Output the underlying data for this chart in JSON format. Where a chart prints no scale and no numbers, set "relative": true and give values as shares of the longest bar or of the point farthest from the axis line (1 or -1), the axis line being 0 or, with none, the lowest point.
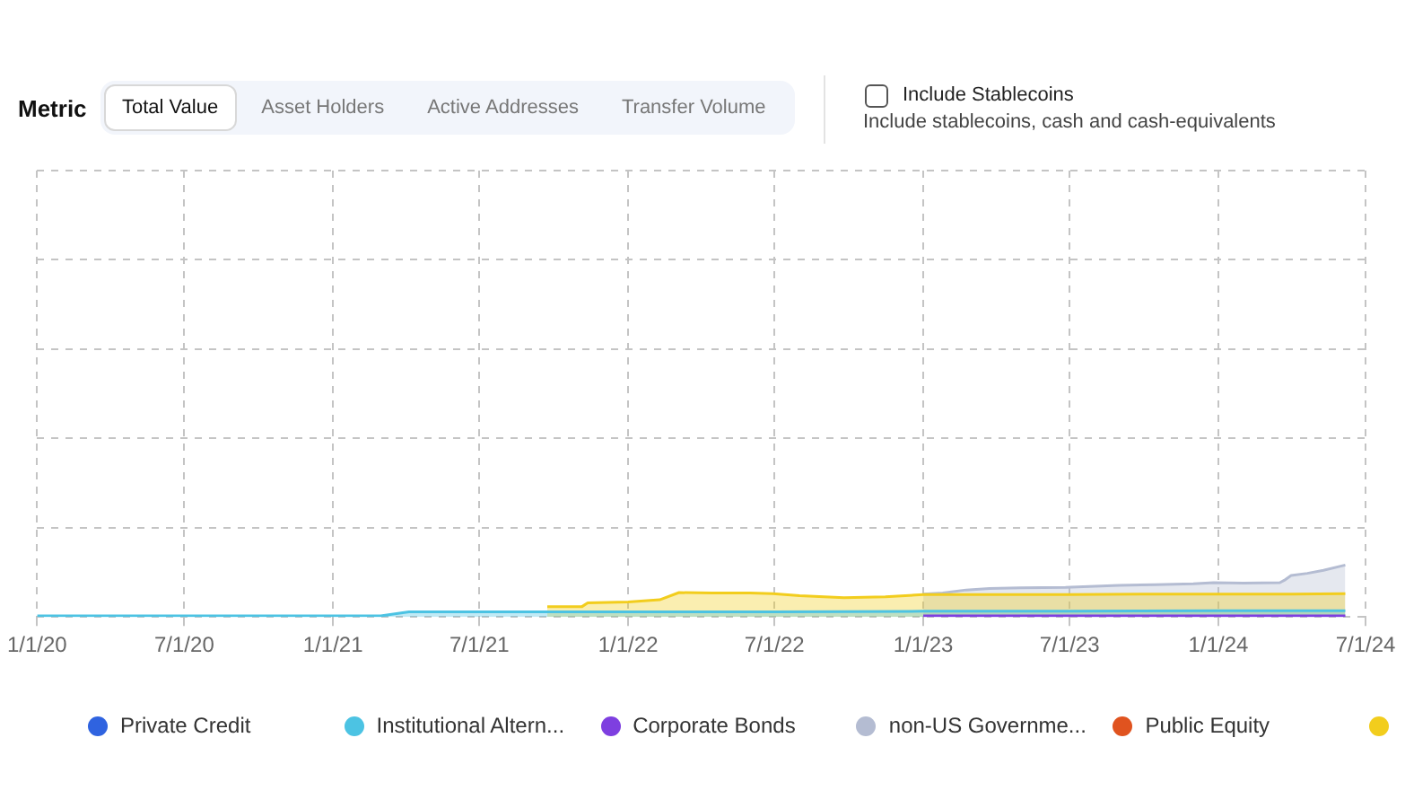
{
  "chart_data": {
    "type": "area",
    "relative": true,
    "annotations": [
      "Metric",
      "Total Value",
      "Asset Holders",
      "Active Addresses",
      "Transfer Volume",
      "Include Stablecoins",
      "Include stablecoins, cash and cash-equivalents"
    ],
    "xlim": [
      "2020-01-01",
      "2024-07-01"
    ],
    "xticks": [
      {
        "value": "2020-01-01",
        "label": "1/1/20"
      },
      {
        "value": "2020-07-01",
        "label": "7/1/20"
      },
      {
        "value": "2021-01-01",
        "label": "1/1/21"
      },
      {
        "value": "2021-07-01",
        "label": "7/1/21"
      },
      {
        "value": "2022-01-01",
        "label": "1/1/22"
      },
      {
        "value": "2022-07-01",
        "label": "7/1/22"
      },
      {
        "value": "2023-01-01",
        "label": "1/1/23"
      },
      {
        "value": "2023-07-01",
        "label": "7/1/23"
      },
      {
        "value": "2024-01-01",
        "label": "1/1/24"
      },
      {
        "value": "2024-07-01",
        "label": "7/1/24"
      }
    ],
    "grid": true,
    "legend": "bottom",
    "marker": "none",
    "line_style": "solid",
    "series": [
      {
        "name": "Private Credit",
        "color": "#2f63e0"
      },
      {
        "name": "Institutional Altern...",
        "color": "#4cc3e3",
        "x": [
          "2020-01-01",
          "2020-07-01",
          "2021-01-01",
          "2021-03-01",
          "2021-04-05",
          "2021-07-01",
          "2022-01-01",
          "2022-07-01",
          "2023-01-01",
          "2023-07-01",
          "2024-01-01",
          "2024-06-06"
        ],
        "values": [
          0.02,
          0.02,
          0.02,
          0.02,
          0.1,
          0.1,
          0.1,
          0.1,
          0.11,
          0.11,
          0.12,
          0.12
        ]
      },
      {
        "name": "Corporate Bonds",
        "color": "#7e3fe0",
        "x": [
          "2023-01-01",
          "2023-07-01",
          "2024-01-01",
          "2024-06-06"
        ],
        "values": [
          0.02,
          0.02,
          0.02,
          0.02
        ]
      },
      {
        "name": "non-US Governme...",
        "color": "#b4bcd2",
        "x": [
          "2023-01-01",
          "2023-01-25",
          "2023-02-23",
          "2023-03-24",
          "2023-05-01",
          "2023-06-26",
          "2023-08-31",
          "2023-10-15",
          "2023-12-01",
          "2023-12-26",
          "2024-02-01",
          "2024-03-17",
          "2024-03-24",
          "2024-03-31",
          "2024-04-20",
          "2024-05-10",
          "2024-06-06"
        ],
        "values": [
          0.44,
          0.46,
          0.52,
          0.55,
          0.56,
          0.57,
          0.61,
          0.62,
          0.64,
          0.66,
          0.65,
          0.66,
          0.72,
          0.8,
          0.84,
          0.9,
          1
        ]
      },
      {
        "name": "Public Equity",
        "color": "#e0531f"
      },
      {
        "color": "#f2cd1d",
        "x": [
          "2021-09-23",
          "2021-11-05",
          "2021-11-12",
          "2022-01-01",
          "2022-02-09",
          "2022-03-05",
          "2022-04-15",
          "2022-06-01",
          "2022-06-29",
          "2022-08-01",
          "2022-09-25",
          "2022-11-15",
          "2023-01-01",
          "2023-04-01",
          "2023-07-01",
          "2023-10-01",
          "2024-01-01",
          "2024-04-01",
          "2024-06-06"
        ],
        "values": [
          0.2,
          0.2,
          0.27,
          0.29,
          0.33,
          0.47,
          0.46,
          0.46,
          0.45,
          0.41,
          0.37,
          0.39,
          0.43,
          0.43,
          0.43,
          0.44,
          0.44,
          0.44,
          0.45
        ]
      }
    ]
  }
}
